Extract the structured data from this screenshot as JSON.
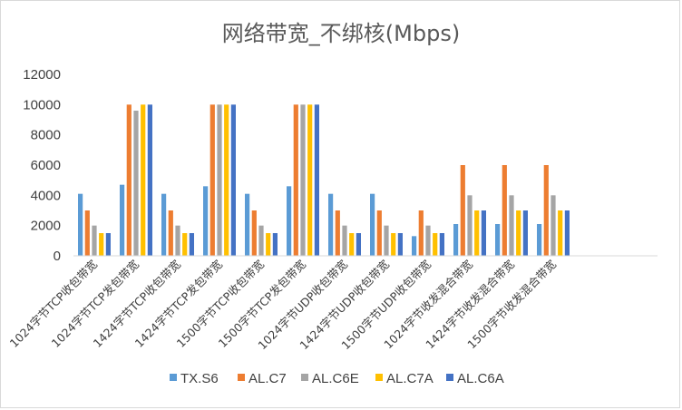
{
  "chart_data": {
    "type": "bar",
    "title": "网络带宽_不绑核(Mbps)",
    "xlabel": "",
    "ylabel": "",
    "ylim": [
      0,
      12000
    ],
    "yticks": [
      0,
      2000,
      4000,
      6000,
      8000,
      10000,
      12000
    ],
    "ytick_labels": [
      "0",
      "2000",
      "4000",
      "6000",
      "8000",
      "10000",
      "12000"
    ],
    "grid": false,
    "legend_position": "bottom",
    "categories": [
      "1024字节TCP收包带宽",
      "1024字节TCP发包带宽",
      "1424字节TCP收包带宽",
      "1424字节TCP发包带宽",
      "1500字节TCP收包带宽",
      "1500字节TCP发包带宽",
      "1024字节UDP收包带宽",
      "1424字节UDP收包带宽",
      "1500字节UDP收包带宽",
      "1024字节收发混合带宽",
      "1424字节收发混合带宽",
      "1500字节收发混合带宽",
      "",
      ""
    ],
    "series": [
      {
        "name": "TX.S6",
        "color": "#5B9BD5",
        "values": [
          4100,
          4700,
          4100,
          4600,
          4100,
          4600,
          4100,
          4100,
          1300,
          2100,
          2100,
          2100,
          null,
          null
        ]
      },
      {
        "name": "AL.C7",
        "color": "#ED7D31",
        "values": [
          3000,
          10000,
          3000,
          10000,
          3000,
          10000,
          3000,
          3000,
          3000,
          6000,
          6000,
          6000,
          null,
          null
        ]
      },
      {
        "name": "AL.C6E",
        "color": "#A5A5A5",
        "values": [
          2000,
          9600,
          2000,
          10000,
          2000,
          10000,
          2000,
          2000,
          2000,
          4000,
          4000,
          4000,
          null,
          null
        ]
      },
      {
        "name": "AL.C7A",
        "color": "#FFC000",
        "values": [
          1500,
          10000,
          1500,
          10000,
          1500,
          10000,
          1500,
          1500,
          1500,
          3000,
          3000,
          3000,
          null,
          null
        ]
      },
      {
        "name": "AL.C6A",
        "color": "#4472C4",
        "values": [
          1500,
          10000,
          1500,
          10000,
          1500,
          10000,
          1500,
          1500,
          1500,
          3000,
          3000,
          3000,
          null,
          null
        ]
      }
    ]
  }
}
